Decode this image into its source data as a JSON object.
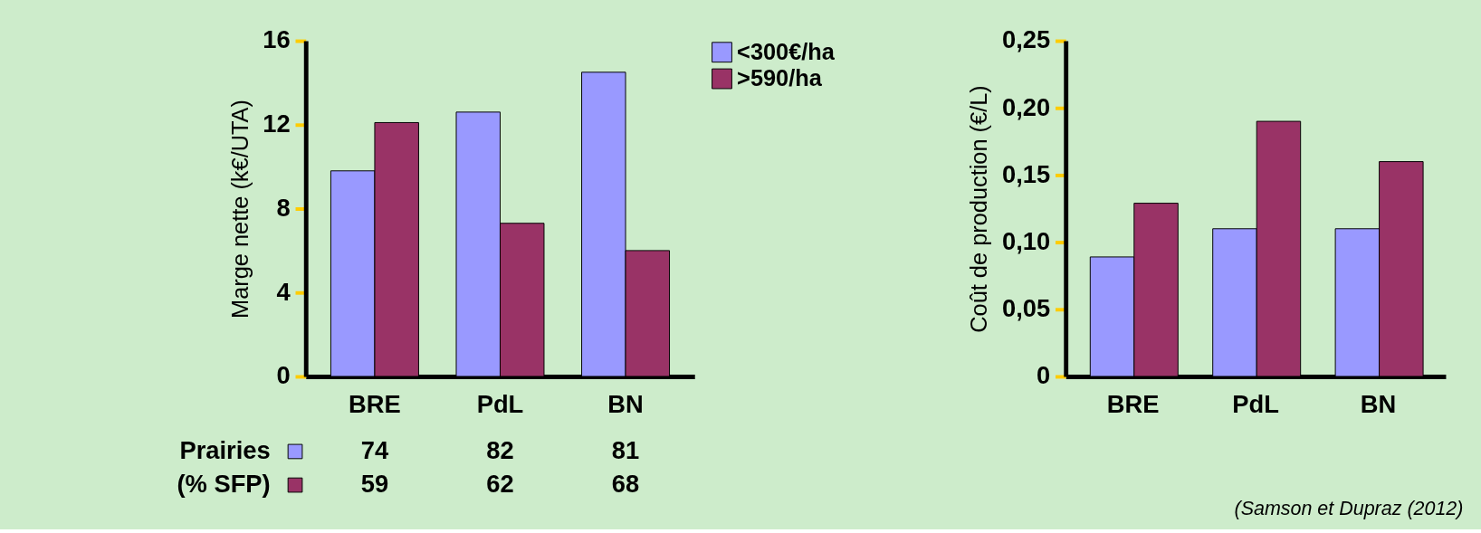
{
  "chart_data": [
    {
      "type": "bar",
      "ylabel": "Marge nette (k€/UTA)",
      "categories": [
        "BRE",
        "PdL",
        "BN"
      ],
      "series": [
        {
          "name": "<300€/ha",
          "color": "#9999ff",
          "values": [
            9.8,
            12.6,
            14.5
          ]
        },
        {
          "name": ">590/ha",
          "color": "#993366",
          "values": [
            12.1,
            7.3,
            6.0
          ]
        }
      ],
      "ylim": [
        0,
        16
      ],
      "yticks": [
        0,
        4,
        8,
        12,
        16
      ],
      "legend": "top right",
      "grid": false,
      "annotations": [
        "Prairies",
        "(% SFP)",
        "74",
        "82",
        "81",
        "59",
        "62",
        "68"
      ]
    },
    {
      "type": "bar",
      "ylabel": "Coût de production (€/L)",
      "categories": [
        "BRE",
        "PdL",
        "BN"
      ],
      "series": [
        {
          "color": "#9999ff",
          "values": [
            0.089,
            0.11,
            0.11
          ]
        },
        {
          "color": "#993366",
          "values": [
            0.129,
            0.19,
            0.16
          ]
        }
      ],
      "ylim": [
        0,
        0.25
      ],
      "yticks": [
        0,
        {
          "value": 0.05,
          "label": "0,05"
        },
        {
          "value": 0.1,
          "label": "0,10"
        },
        {
          "value": 0.15,
          "label": "0,15"
        },
        {
          "value": 0.2,
          "label": "0,20"
        },
        {
          "value": 0.25,
          "label": "0,25"
        }
      ],
      "grid": false,
      "annotations": [
        "(Samson et Dupraz (2012)"
      ]
    }
  ]
}
